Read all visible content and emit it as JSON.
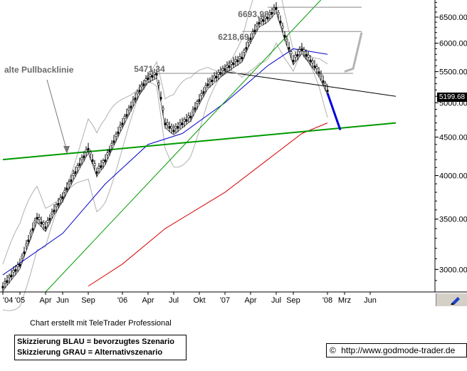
{
  "chart_data": {
    "type": "line",
    "title": "",
    "xlabel": "",
    "ylabel": "",
    "y_scale": "log",
    "ylim": [
      2800,
      6850
    ],
    "x_ticks": [
      "'04",
      "'05",
      "Apr",
      "Jun",
      "Sep",
      "'06",
      "Apr",
      "Jul",
      "Okt",
      "'07",
      "Apr",
      "Jul",
      "Sep",
      "'08",
      "Mrz",
      "Jun"
    ],
    "y_ticks": [
      "6500.00",
      "6000.00",
      "5500.00",
      "5000.00",
      "4500.00",
      "4000.00",
      "3500.00",
      "3000.00"
    ],
    "last_price": "5199.68",
    "annotations": [
      "6693,98",
      "6218,69",
      "5471,34",
      "alte Pullbacklinie"
    ],
    "series": [
      {
        "type": "candlestick",
        "values": [
          {
            "date": "2004-11",
            "close": 2850
          },
          {
            "date": "2005-01",
            "close": 3050
          },
          {
            "date": "2005-03",
            "close": 3520
          },
          {
            "date": "2005-04",
            "close": 3420
          },
          {
            "date": "2005-05",
            "close": 3600
          },
          {
            "date": "2005-06",
            "close": 3750
          },
          {
            "date": "2005-08",
            "close": 4150
          },
          {
            "date": "2005-09",
            "close": 4350
          },
          {
            "date": "2005-10",
            "close": 4050
          },
          {
            "date": "2005-11",
            "close": 4200
          },
          {
            "date": "2006-01",
            "close": 4700
          },
          {
            "date": "2006-03",
            "close": 5200
          },
          {
            "date": "2006-04",
            "close": 5400
          },
          {
            "date": "2006-05",
            "close": 5471
          },
          {
            "date": "2006-06",
            "close": 4700
          },
          {
            "date": "2006-07",
            "close": 4600
          },
          {
            "date": "2006-09",
            "close": 4800
          },
          {
            "date": "2006-11",
            "close": 5300
          },
          {
            "date": "2007-01",
            "close": 5550
          },
          {
            "date": "2007-03",
            "close": 5750
          },
          {
            "date": "2007-04",
            "close": 6100
          },
          {
            "date": "2007-05",
            "close": 6400
          },
          {
            "date": "2007-06",
            "close": 6500
          },
          {
            "date": "2007-07",
            "close": 6694
          },
          {
            "date": "2007-08",
            "close": 6150
          },
          {
            "date": "2007-09",
            "close": 5700
          },
          {
            "date": "2007-10",
            "close": 5900
          },
          {
            "date": "2007-11",
            "close": 5700
          },
          {
            "date": "2007-12",
            "close": 5500
          },
          {
            "date": "2008-01",
            "close": 5200
          }
        ]
      },
      {
        "type": "sma-long",
        "values": [
          {
            "date": "2005-09",
            "close": 2850
          },
          {
            "date": "2006-01",
            "close": 3050
          },
          {
            "date": "2006-06",
            "close": 3400
          },
          {
            "date": "2007-01",
            "close": 3800
          },
          {
            "date": "2007-06",
            "close": 4200
          },
          {
            "date": "2007-10",
            "close": 4550
          },
          {
            "date": "2008-01",
            "close": 4700
          }
        ]
      },
      {
        "type": "sma-mid",
        "values": [
          {
            "date": "2004-11",
            "close": 2950
          },
          {
            "date": "2005-06",
            "close": 3350
          },
          {
            "date": "2005-11",
            "close": 3900
          },
          {
            "date": "2006-04",
            "close": 4400
          },
          {
            "date": "2006-08",
            "close": 4550
          },
          {
            "date": "2007-01",
            "close": 5000
          },
          {
            "date": "2007-06",
            "close": 5600
          },
          {
            "date": "2007-09",
            "close": 5900
          },
          {
            "date": "2008-01",
            "close": 5800
          }
        ]
      }
    ],
    "lines": {
      "old_pullback": {
        "from": {
          "date": "2004-11",
          "value": 4200
        },
        "to": {
          "date": "2008-09",
          "value": 4700
        }
      },
      "trend_up": {
        "from": {
          "date": "2005-04",
          "value": 2800
        },
        "to": {
          "date": "2008-01",
          "value": 7000
        }
      },
      "neckline": {
        "from": {
          "date": "2007-01",
          "value": 5500
        },
        "to": {
          "date": "2008-09",
          "value": 5100
        }
      },
      "level_high": {
        "from": {
          "date": "2007-06",
          "value": 6700
        },
        "to": {
          "date": "2008-05",
          "value": 6700
        }
      },
      "level_mid": {
        "from": {
          "date": "2007-03",
          "value": 6219
        },
        "to": {
          "date": "2008-05",
          "value": 6219
        }
      },
      "level_low": {
        "from": {
          "date": "2006-05",
          "value": 5471
        },
        "to": {
          "date": "2008-04",
          "value": 5471
        }
      }
    },
    "scenario_blue": [
      {
        "date": "2008-01",
        "value": 5150
      },
      {
        "date": "2008-03",
        "value": 4600
      }
    ],
    "scenario_grey": [
      {
        "date": "2008-03",
        "value": 5500
      },
      {
        "date": "2008-04",
        "value": 5550
      },
      {
        "date": "2008-05",
        "value": 6200
      }
    ],
    "colors": {
      "candle": "#000000",
      "sma_long": "#d40000",
      "sma_mid": "#0000c8",
      "bands": "#b0b0b0",
      "support": "#009900",
      "trend": "#009900",
      "neckline": "#000000",
      "blue_arrow": "#0000dd",
      "grey_arrow": "#b4b4b4"
    }
  },
  "footer": {
    "credit": "Chart erstellt mit TeleTrader Professional",
    "legend_blue": "Skizzierung BLAU = bevorzugtes Szenario",
    "legend_grey": "Skizzierung GRAU = Alternativszenario",
    "copyright_symbol": "©",
    "url": "http://www.godmode-trader.de"
  },
  "toolbar": {
    "pen_icon": "pen-icon"
  }
}
